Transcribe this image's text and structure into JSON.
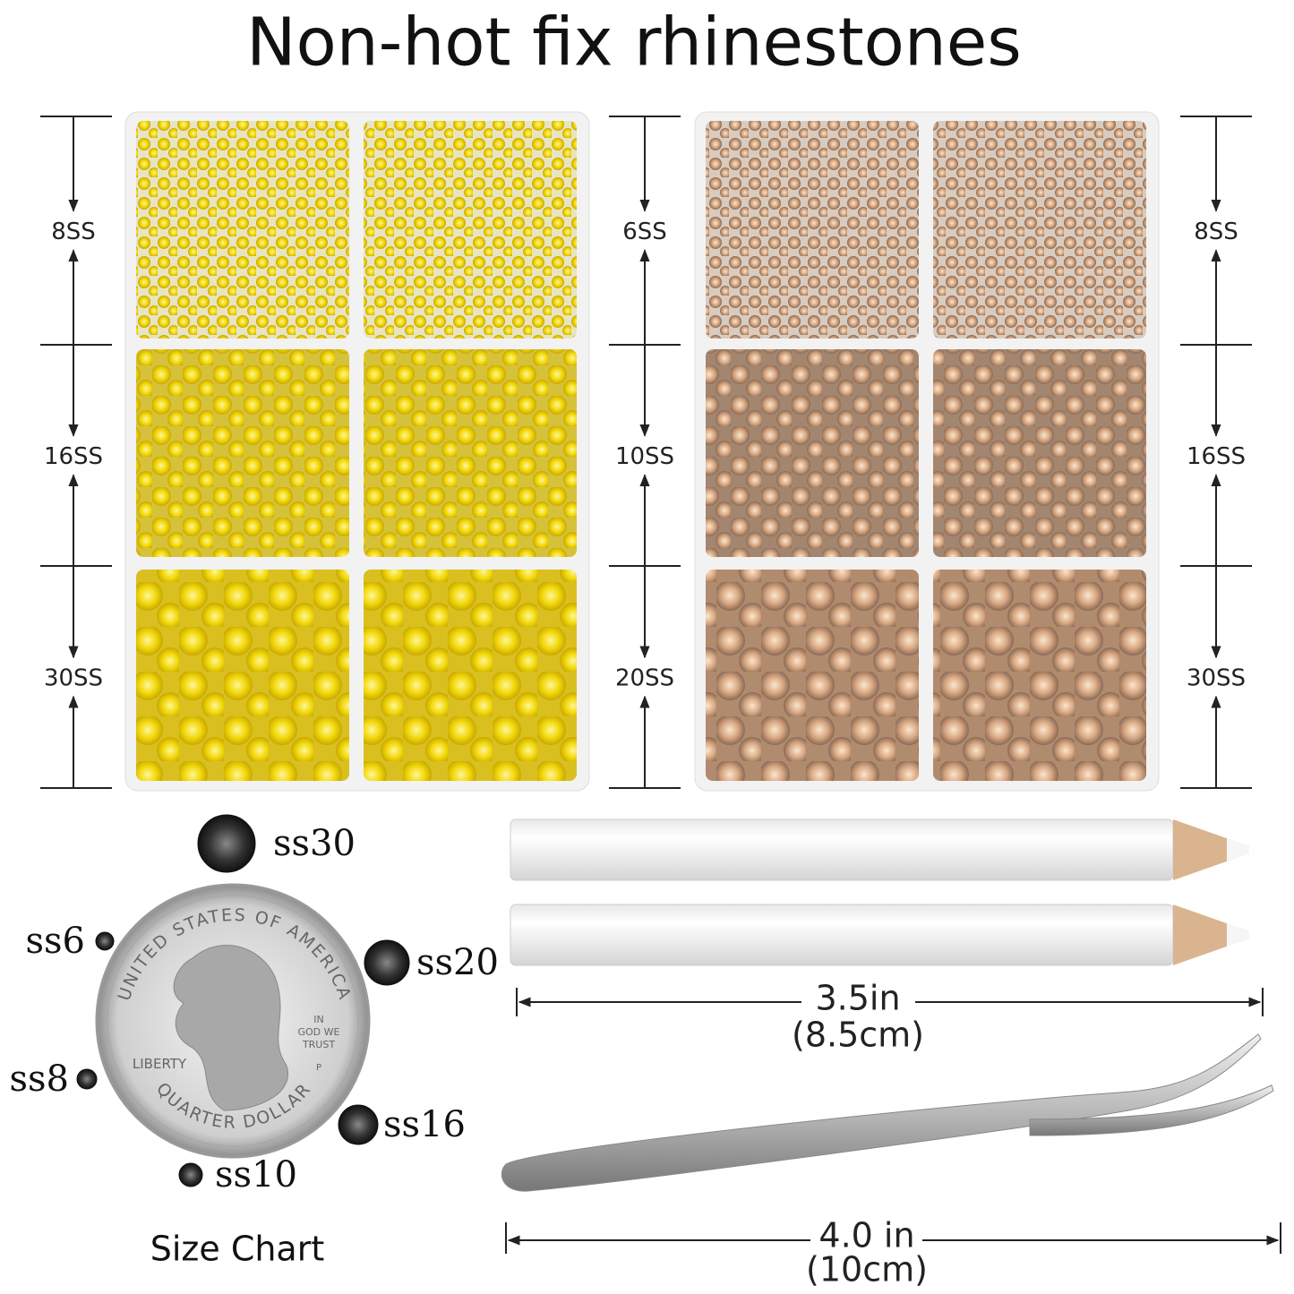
{
  "title": "Non-hot fix rhinestones",
  "dimensions": {
    "left": [
      "8SS",
      "16SS",
      "30SS"
    ],
    "middle": [
      "6SS",
      "10SS",
      "20SS"
    ],
    "right": [
      "8SS",
      "16SS",
      "30SS"
    ]
  },
  "coin": {
    "top": "UNITED STATES OF AMERICA",
    "liberty": "LIBERTY",
    "motto": [
      "IN",
      "GOD WE",
      "TRUST"
    ],
    "bottom": "QUARTER DOLLAR",
    "mint": "P"
  },
  "size_chart": {
    "title": "Size Chart",
    "stones": [
      "ss30",
      "ss6",
      "ss20",
      "ss8",
      "ss16",
      "ss10"
    ]
  },
  "pencil": {
    "length": "3.5in",
    "metric": "(8.5cm)"
  },
  "tweezers": {
    "length": "4.0 in",
    "metric": "(10cm)"
  }
}
